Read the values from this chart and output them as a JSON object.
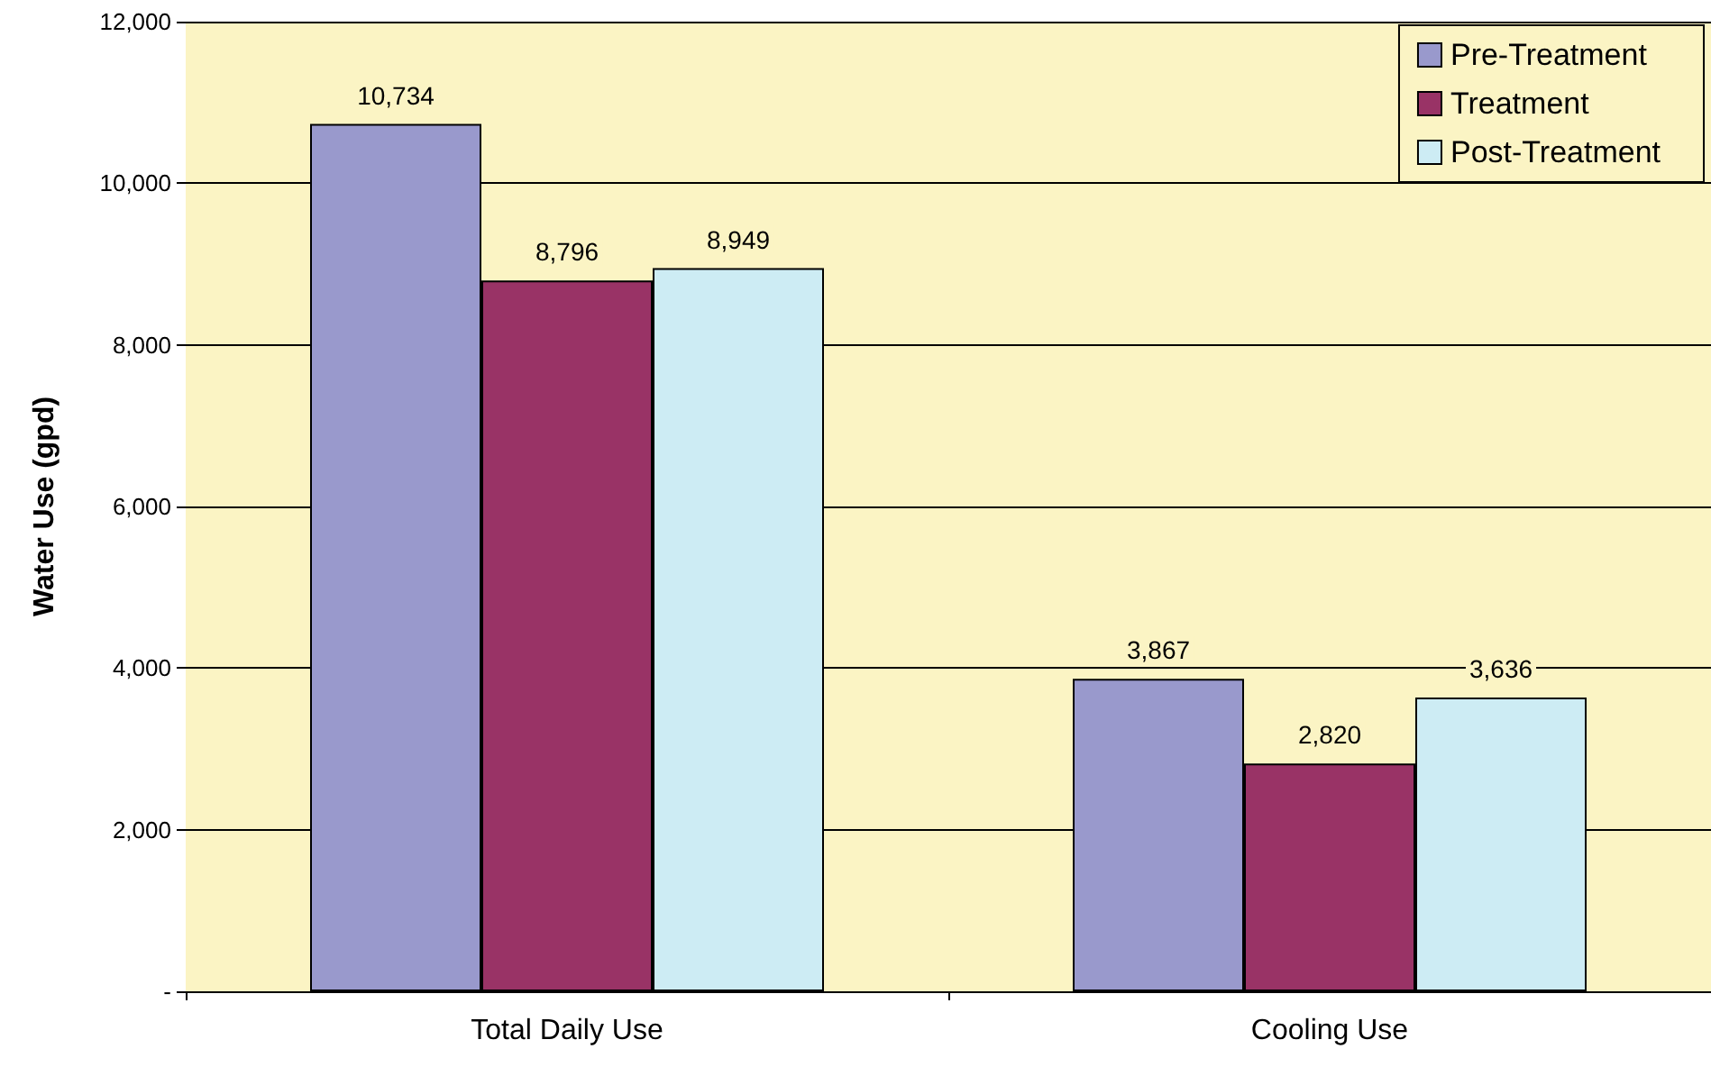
{
  "chart_data": {
    "type": "bar",
    "ylabel": "Water Use (gpd)",
    "categories": [
      "Total Daily Use",
      "Cooling Use"
    ],
    "series": [
      {
        "name": "Pre-Treatment",
        "color": "#9999cc",
        "values": [
          10734,
          3867
        ],
        "value_labels": [
          "10,734",
          "3,867"
        ]
      },
      {
        "name": "Treatment",
        "color": "#993366",
        "values": [
          8796,
          2820
        ],
        "value_labels": [
          "8,796",
          "2,820"
        ]
      },
      {
        "name": "Post-Treatment",
        "color": "#cdecf4",
        "values": [
          8949,
          3636
        ],
        "value_labels": [
          "8,949",
          "3,636"
        ]
      }
    ],
    "ylim": [
      0,
      12000
    ],
    "yticks": [
      {
        "value": 0,
        "label": "-"
      },
      {
        "value": 2000,
        "label": "2,000"
      },
      {
        "value": 4000,
        "label": "4,000"
      },
      {
        "value": 6000,
        "label": "6,000"
      },
      {
        "value": 8000,
        "label": "8,000"
      },
      {
        "value": 10000,
        "label": "10,000"
      },
      {
        "value": 12000,
        "label": "12,000"
      }
    ],
    "grid": "y",
    "legend": "top right"
  }
}
